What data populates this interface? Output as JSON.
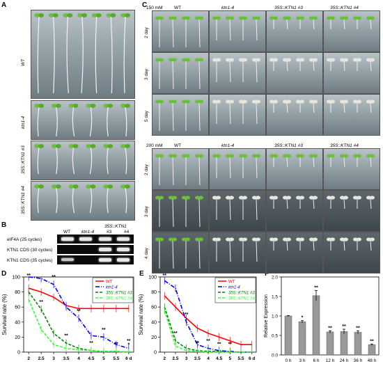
{
  "panels": {
    "A": "A",
    "B": "B",
    "C": "C",
    "D": "D",
    "E": "E",
    "F": "F"
  },
  "panelA": {
    "rows": [
      "WT",
      "ktn1-4",
      "35S::KTN1 #3",
      "35S::KTN1 #4"
    ]
  },
  "panelC": {
    "top_conc": "150 mM",
    "bottom_conc": "200 mM",
    "columns": [
      "WT",
      "ktn1-4",
      "35S::KTN1 #3",
      "35S::KTN1 #4"
    ],
    "days": [
      "2 day",
      "3 day",
      "5 day"
    ],
    "days_bottom": [
      "2 day",
      "3 day",
      "4 day"
    ]
  },
  "panelB": {
    "lanes": [
      "WT",
      "ktn1-4",
      "#3",
      "#4"
    ],
    "group": "35S::KTN1",
    "rows": [
      "eIF4A (25 cycles)",
      "KTN1 CDS (30 cycles)",
      "KTN1 CDS (35 cycles)"
    ]
  },
  "colors": {
    "WT": "#ff0000",
    "ktn1": "#0000ff",
    "ktn3": "#008000",
    "ktn4": "#33ff33",
    "bar": "#999999"
  },
  "chart_data": [
    {
      "panel": "D",
      "type": "line",
      "x": [
        2,
        2.5,
        3,
        3.5,
        4,
        4.5,
        5,
        5.5,
        6
      ],
      "xticks": [
        "2",
        "2.5",
        "3",
        "3.5",
        "4",
        "4.5",
        "5",
        "5.5",
        "6 d"
      ],
      "ylabel": "Survival rate (%)",
      "ylim": [
        0,
        100
      ],
      "yticks": [
        0,
        20,
        40,
        60,
        80,
        100
      ],
      "legend_position": "top-right",
      "series": [
        {
          "name": "WT",
          "color": "#ff0000",
          "dash": "solid",
          "x": [
            2,
            2.5,
            3,
            3.5,
            4,
            4.5,
            5,
            5.5,
            6
          ],
          "values": [
            85,
            80,
            73,
            62,
            58,
            58,
            58,
            58,
            58
          ]
        },
        {
          "name": "ktn1-4",
          "color": "#0000ff",
          "dash": "dashdot",
          "x": [
            2,
            2.5,
            3,
            3.5,
            4,
            4.5,
            5,
            5.5,
            6
          ],
          "values": [
            100,
            98,
            90,
            60,
            45,
            22,
            20,
            10,
            5
          ]
        },
        {
          "name": "35S::KTN1 #3",
          "color": "#008000",
          "dash": "dash",
          "x": [
            2,
            2.5,
            3,
            3.5,
            4,
            4.5,
            5,
            5.5,
            6
          ],
          "values": [
            80,
            57,
            25,
            12,
            5,
            2,
            1,
            1,
            0
          ]
        },
        {
          "name": "35S::KTN1 #4",
          "color": "#33ff33",
          "dash": "dash",
          "x": [
            2,
            2.5,
            3,
            3.5,
            4,
            4.5,
            5,
            5.5,
            6
          ],
          "values": [
            70,
            30,
            10,
            5,
            3,
            2,
            1,
            1,
            0
          ]
        }
      ],
      "annotations": [
        "**",
        "**",
        "**",
        "**",
        "**",
        "**",
        "**",
        "**",
        "**",
        "*"
      ]
    },
    {
      "panel": "E",
      "type": "line",
      "x": [
        2,
        2.5,
        3,
        3.5,
        4,
        4.5,
        5,
        5.5,
        6
      ],
      "xticks": [
        "2",
        "2.5",
        "3",
        "3.5",
        "4",
        "4.5",
        "5",
        "5.5",
        "6 d"
      ],
      "ylabel": "Survival rate (%)",
      "ylim": [
        0,
        100
      ],
      "yticks": [
        0,
        20,
        40,
        60,
        80,
        100
      ],
      "legend_position": "top-right",
      "series": [
        {
          "name": "WT",
          "color": "#ff0000",
          "dash": "solid",
          "x": [
            2,
            2.5,
            3,
            3.5,
            4,
            4.5,
            5,
            5.5,
            6
          ],
          "values": [
            75,
            60,
            45,
            32,
            25,
            20,
            15,
            10,
            10
          ]
        },
        {
          "name": "ktn1-4",
          "color": "#0000ff",
          "dash": "dashdot",
          "x": [
            2,
            2.5,
            3,
            3.5,
            4,
            4.5,
            5,
            5.5,
            6
          ],
          "values": [
            95,
            85,
            40,
            10,
            5,
            2,
            1,
            0,
            0
          ]
        },
        {
          "name": "35S::KTN1 #3",
          "color": "#008000",
          "dash": "dash",
          "x": [
            2,
            2.5,
            3,
            3.5,
            4,
            4.5,
            5,
            5.5,
            6
          ],
          "values": [
            60,
            15,
            5,
            2,
            1,
            1,
            0,
            0,
            0
          ]
        },
        {
          "name": "35S::KTN1 #4",
          "color": "#33ff33",
          "dash": "dash",
          "x": [
            2,
            2.5,
            3,
            3.5,
            4,
            4.5,
            5,
            5.5,
            6
          ],
          "values": [
            55,
            8,
            2,
            1,
            0,
            0,
            0,
            0,
            0
          ]
        }
      ],
      "annotations": [
        "**",
        "**",
        "**",
        "**",
        "**",
        "**",
        "**"
      ]
    },
    {
      "panel": "F",
      "type": "bar",
      "categories": [
        "0 h",
        "3 h",
        "6 h",
        "12 h",
        "24 h",
        "36 h",
        "48 h"
      ],
      "values": [
        1.0,
        0.85,
        1.52,
        0.59,
        0.6,
        0.58,
        0.26
      ],
      "errors": [
        0.01,
        0.03,
        0.13,
        0.03,
        0.06,
        0.04,
        0.02
      ],
      "stars": [
        "",
        "*",
        "**",
        "**",
        "**",
        "**",
        "**"
      ],
      "ylabel": "Relative Expression",
      "ylim": [
        0,
        2.0
      ],
      "yticks": [
        "0.0",
        "0.5",
        "1.0",
        "1.5",
        "2.0"
      ]
    }
  ]
}
